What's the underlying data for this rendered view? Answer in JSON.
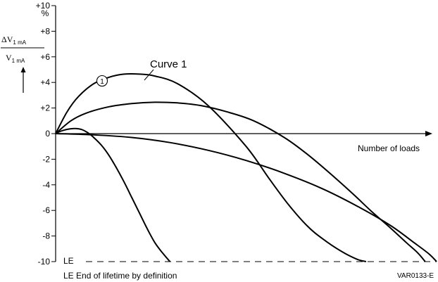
{
  "chart_data": {
    "type": "line",
    "y_unit": "%",
    "ylabel_num": "ΔV",
    "ylabel_den": "V",
    "ylabel_sub": "1 mA",
    "xlabel": "Number of loads",
    "ylim": [
      -10,
      10
    ],
    "yticks": [
      10,
      8,
      6,
      4,
      2,
      0,
      -2,
      -4,
      -6,
      -8,
      -10
    ],
    "ytick_labels": [
      "+10",
      "+8",
      "+6",
      "+4",
      "+2",
      "0",
      "-2",
      "-4",
      "-6",
      "-8",
      "-10"
    ],
    "x_relative_range": [
      0,
      100
    ],
    "le_label": "LE",
    "le_value": -10,
    "le_note": "LE End of lifetime by definition",
    "figure_code": "VAR0133-E",
    "annotation_curve": "Curve 1",
    "annotation_marker": "1",
    "series": [
      {
        "x": [
          0,
          3,
          6,
          10,
          14,
          18,
          22,
          26,
          32,
          40,
          50,
          56,
          61,
          66,
          70,
          75,
          79,
          81.5
        ],
        "y": [
          0,
          1.7,
          2.9,
          3.9,
          4.4,
          4.65,
          4.65,
          4.5,
          3.9,
          2.2,
          -1.0,
          -3.5,
          -5.5,
          -7.2,
          -8.2,
          -9.2,
          -9.8,
          -10
        ]
      },
      {
        "x": [
          0,
          4,
          8,
          14,
          20,
          26,
          32,
          38,
          45,
          52,
          60,
          66,
          72,
          78,
          83,
          88,
          92,
          95,
          97
        ],
        "y": [
          0,
          1.0,
          1.6,
          2.1,
          2.35,
          2.45,
          2.4,
          2.2,
          1.7,
          1.0,
          -0.3,
          -1.6,
          -3.1,
          -4.7,
          -6.1,
          -7.4,
          -8.5,
          -9.3,
          -10
        ]
      },
      {
        "x": [
          0,
          10,
          20,
          30,
          40,
          50,
          60,
          70,
          80,
          88,
          94,
          98,
          100
        ],
        "y": [
          0,
          -0.1,
          -0.3,
          -0.7,
          -1.3,
          -2.1,
          -3.1,
          -4.3,
          -5.8,
          -7.2,
          -8.5,
          -9.4,
          -10
        ]
      },
      {
        "x": [
          0,
          1,
          2,
          3,
          4,
          5,
          6,
          7,
          8,
          9,
          10,
          12,
          14,
          16,
          18,
          20,
          22,
          24,
          26,
          28,
          30
        ],
        "y": [
          0,
          0.15,
          0.25,
          0.33,
          0.38,
          0.4,
          0.38,
          0.3,
          0.15,
          -0.05,
          -0.3,
          -0.9,
          -1.7,
          -2.7,
          -3.8,
          -5.0,
          -6.2,
          -7.4,
          -8.5,
          -9.3,
          -10
        ]
      }
    ]
  }
}
